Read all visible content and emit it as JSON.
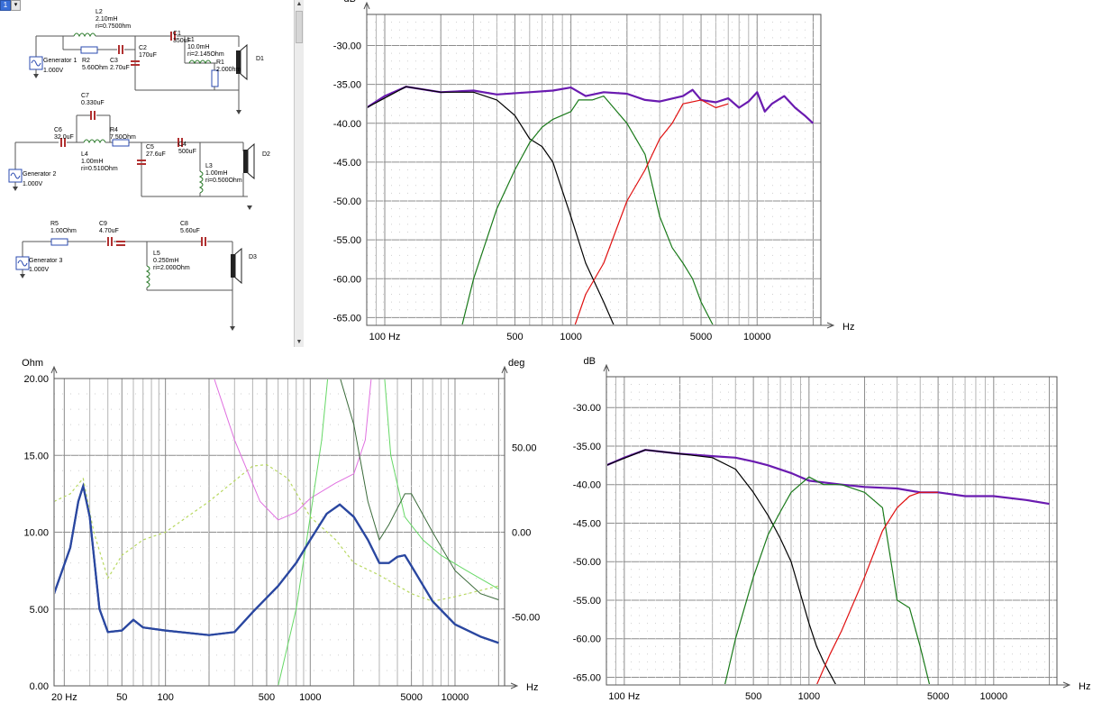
{
  "toolbar": {
    "combo_value": "1",
    "dropdown_glyph": "▾"
  },
  "schematic": {
    "generators": [
      {
        "name": "Generator 1",
        "voltage": "1.000V"
      },
      {
        "name": "Generator 2",
        "voltage": "1.000V"
      },
      {
        "name": "Generator 3",
        "voltage": "1.000V"
      }
    ],
    "drivers": [
      "D1",
      "D2",
      "D3"
    ],
    "components": [
      {
        "ref": "L2",
        "lines": [
          "L2",
          "2.10mH",
          "ri=0.7500hm"
        ]
      },
      {
        "ref": "R2",
        "lines": [
          "R2",
          "5.60Ohm"
        ]
      },
      {
        "ref": "C3",
        "lines": [
          "C3",
          "2.70uF"
        ]
      },
      {
        "ref": "C2",
        "lines": [
          "C2",
          "170uF"
        ]
      },
      {
        "ref": "C1",
        "lines": [
          "C1",
          "350uF"
        ]
      },
      {
        "ref": "L1",
        "lines": [
          "L1",
          "10.0mH",
          "ri=2.145Ohm"
        ]
      },
      {
        "ref": "R1",
        "lines": [
          "R1",
          "2.000hm"
        ]
      },
      {
        "ref": "C7",
        "lines": [
          "C7",
          "0.330uF"
        ]
      },
      {
        "ref": "C6",
        "lines": [
          "C6",
          "32.0uF"
        ]
      },
      {
        "ref": "R4",
        "lines": [
          "R4",
          "7.50Ohm"
        ]
      },
      {
        "ref": "L4",
        "lines": [
          "L4",
          "1.00mH",
          "ri=0.510Ohm"
        ]
      },
      {
        "ref": "C5",
        "lines": [
          "C5",
          "27.6uF"
        ]
      },
      {
        "ref": "C4",
        "lines": [
          "C4",
          "500uF"
        ]
      },
      {
        "ref": "L3",
        "lines": [
          "L3",
          "1.00mH",
          "ri=0.500Ohm"
        ]
      },
      {
        "ref": "R5",
        "lines": [
          "R5",
          "1.00Ohm"
        ]
      },
      {
        "ref": "C9",
        "lines": [
          "C9",
          "4.70uF"
        ]
      },
      {
        "ref": "C8",
        "lines": [
          "C8",
          "5.60uF"
        ]
      },
      {
        "ref": "L5",
        "lines": [
          "L5",
          "0.250mH",
          "ri=2.000Ohm"
        ]
      }
    ]
  },
  "charts": {
    "top_right": {
      "type": "line",
      "ylabel": "dB",
      "xlabel": "Hz",
      "x_scale": "log",
      "xlim": [
        80,
        22000
      ],
      "ylim": [
        -66,
        -26
      ],
      "y_ticks": [
        "-30.00",
        "-35.00",
        "-40.00",
        "-45.00",
        "-50.00",
        "-55.00",
        "-60.00",
        "-65.00"
      ],
      "y_tick_values": [
        -30,
        -35,
        -40,
        -45,
        -50,
        -55,
        -60,
        -65
      ],
      "x_ticks": [
        {
          "value": 100,
          "label": "100 Hz"
        },
        {
          "value": 500,
          "label": "500"
        },
        {
          "value": 1000,
          "label": "1000"
        },
        {
          "value": 5000,
          "label": "5000"
        },
        {
          "value": 10000,
          "label": "10000"
        }
      ],
      "colors": {
        "sum": "#6a1bb0",
        "woofer": "#000000",
        "mid": "#1a7a1a",
        "tweeter": "#e01010"
      }
    },
    "bottom_left": {
      "type": "line",
      "ylabel": "Ohm",
      "ylabel_right": "deg",
      "xlabel": "Hz",
      "x_scale": "log",
      "xlim": [
        17,
        22000
      ],
      "ylim": [
        0,
        20
      ],
      "y_ticks": [
        "20.00",
        "15.00",
        "10.00",
        "5.00",
        "0.00"
      ],
      "y_tick_values": [
        20,
        15,
        10,
        5,
        0
      ],
      "y_ticks_right": [
        "50.00",
        "0.00",
        "-50.00"
      ],
      "y_tick_values_right": [
        50,
        0,
        -50
      ],
      "x_ticks": [
        {
          "value": 20,
          "label": "20 Hz"
        },
        {
          "value": 50,
          "label": "50"
        },
        {
          "value": 100,
          "label": "100"
        },
        {
          "value": 500,
          "label": "500"
        },
        {
          "value": 1000,
          "label": "1000"
        },
        {
          "value": 5000,
          "label": "5000"
        },
        {
          "value": 10000,
          "label": "10000"
        }
      ],
      "colors": {
        "impedance": "#2a47a0",
        "phase": "#b8d860",
        "green1": "#66d866",
        "green2": "#3a6a3a",
        "magenta": "#e070e0"
      }
    },
    "bottom_right": {
      "type": "line",
      "ylabel": "dB",
      "xlabel": "Hz",
      "x_scale": "log",
      "xlim": [
        80,
        22000
      ],
      "ylim": [
        -66,
        -26
      ],
      "y_ticks": [
        "-30.00",
        "-35.00",
        "-40.00",
        "-45.00",
        "-50.00",
        "-55.00",
        "-60.00",
        "-65.00"
      ],
      "y_tick_values": [
        -30,
        -35,
        -40,
        -45,
        -50,
        -55,
        -60,
        -65
      ],
      "x_ticks": [
        {
          "value": 100,
          "label": "100 Hz"
        },
        {
          "value": 500,
          "label": "500"
        },
        {
          "value": 1000,
          "label": "1000"
        },
        {
          "value": 5000,
          "label": "5000"
        },
        {
          "value": 10000,
          "label": "10000"
        }
      ],
      "colors": {
        "sum": "#6a1bb0",
        "woofer": "#000000",
        "mid": "#1a7a1a",
        "tweeter": "#e01010"
      }
    }
  },
  "chart_data": [
    {
      "type": "line",
      "xlabel": "Hz",
      "ylabel": "dB",
      "ylim": [
        -66,
        -26
      ],
      "series": [
        {
          "values": [
            [
              80,
              -38.0
            ],
            [
              100,
              -36.5
            ],
            [
              130,
              -35.3
            ],
            [
              200,
              -36.0
            ],
            [
              300,
              -35.8
            ],
            [
              400,
              -36.3
            ],
            [
              600,
              -36.0
            ],
            [
              800,
              -35.8
            ],
            [
              1000,
              -35.4
            ],
            [
              1200,
              -36.5
            ],
            [
              1500,
              -36.0
            ],
            [
              2000,
              -36.2
            ],
            [
              2500,
              -37.0
            ],
            [
              3000,
              -37.2
            ],
            [
              4000,
              -36.5
            ],
            [
              4500,
              -35.7
            ],
            [
              5000,
              -37.0
            ],
            [
              6000,
              -37.3
            ],
            [
              7000,
              -36.8
            ],
            [
              8000,
              -38.0
            ],
            [
              9000,
              -37.2
            ],
            [
              10000,
              -36.0
            ],
            [
              11000,
              -38.5
            ],
            [
              12000,
              -37.5
            ],
            [
              14000,
              -36.5
            ],
            [
              16000,
              -38.0
            ],
            [
              18000,
              -39.0
            ],
            [
              20000,
              -40.0
            ]
          ]
        },
        {
          "values": [
            [
              80,
              -38.0
            ],
            [
              130,
              -35.3
            ],
            [
              200,
              -36.0
            ],
            [
              300,
              -36.0
            ],
            [
              400,
              -37.0
            ],
            [
              500,
              -39.0
            ],
            [
              600,
              -42.0
            ],
            [
              700,
              -43.0
            ],
            [
              800,
              -45.0
            ],
            [
              1000,
              -52.0
            ],
            [
              1200,
              -58.0
            ],
            [
              1500,
              -63.0
            ],
            [
              1700,
              -66.0
            ]
          ]
        },
        {
          "values": [
            [
              260,
              -66.0
            ],
            [
              300,
              -60.0
            ],
            [
              400,
              -51.0
            ],
            [
              500,
              -46.0
            ],
            [
              600,
              -42.5
            ],
            [
              700,
              -40.5
            ],
            [
              800,
              -39.5
            ],
            [
              1000,
              -38.5
            ],
            [
              1100,
              -37.0
            ],
            [
              1300,
              -37.0
            ],
            [
              1500,
              -36.5
            ],
            [
              2000,
              -40.0
            ],
            [
              2500,
              -44.0
            ],
            [
              3000,
              -52.0
            ],
            [
              3500,
              -56.0
            ],
            [
              4000,
              -58.0
            ],
            [
              4500,
              -60.0
            ],
            [
              5000,
              -63.0
            ],
            [
              5800,
              -66.0
            ]
          ]
        },
        {
          "values": [
            [
              1050,
              -66.0
            ],
            [
              1200,
              -62.0
            ],
            [
              1500,
              -58.0
            ],
            [
              2000,
              -50.0
            ],
            [
              2500,
              -46.0
            ],
            [
              3000,
              -42.0
            ],
            [
              3500,
              -40.0
            ],
            [
              4000,
              -37.5
            ],
            [
              5000,
              -37.0
            ],
            [
              6000,
              -38.0
            ],
            [
              7000,
              -37.5
            ]
          ]
        }
      ]
    },
    {
      "type": "line",
      "xlabel": "Hz",
      "ylabel": "Ohm",
      "ylim": [
        0,
        20
      ],
      "series": [
        {
          "values": [
            [
              17,
              6.0
            ],
            [
              22,
              9.0
            ],
            [
              25,
              12.0
            ],
            [
              27,
              13.0
            ],
            [
              30,
              11.0
            ],
            [
              35,
              5.0
            ],
            [
              40,
              3.5
            ],
            [
              50,
              3.6
            ],
            [
              60,
              4.3
            ],
            [
              70,
              3.8
            ],
            [
              100,
              3.6
            ],
            [
              200,
              3.3
            ],
            [
              300,
              3.5
            ],
            [
              400,
              4.8
            ],
            [
              600,
              6.5
            ],
            [
              800,
              8.0
            ],
            [
              1000,
              9.5
            ],
            [
              1300,
              11.2
            ],
            [
              1600,
              11.8
            ],
            [
              2000,
              11.0
            ],
            [
              2500,
              9.5
            ],
            [
              3000,
              8.0
            ],
            [
              3500,
              8.0
            ],
            [
              4000,
              8.4
            ],
            [
              4500,
              8.5
            ],
            [
              5000,
              7.8
            ],
            [
              7000,
              5.5
            ],
            [
              10000,
              4.0
            ],
            [
              15000,
              3.2
            ],
            [
              20000,
              2.8
            ]
          ]
        },
        {
          "values": [
            [
              17,
              12.0
            ],
            [
              22,
              12.5
            ],
            [
              27,
              13.5
            ],
            [
              32,
              10.0
            ],
            [
              40,
              7.0
            ],
            [
              50,
              8.5
            ],
            [
              70,
              9.5
            ],
            [
              100,
              10.0
            ],
            [
              200,
              12.0
            ],
            [
              400,
              14.3
            ],
            [
              500,
              14.4
            ],
            [
              700,
              13.5
            ],
            [
              1000,
              11.0
            ],
            [
              1500,
              9.5
            ],
            [
              2000,
              8.0
            ],
            [
              3000,
              7.2
            ],
            [
              5000,
              6.0
            ],
            [
              7000,
              5.5
            ],
            [
              10000,
              5.8
            ],
            [
              20000,
              6.5
            ]
          ]
        }
      ]
    },
    {
      "type": "line",
      "xlabel": "Hz",
      "ylabel": "dB",
      "ylim": [
        -66,
        -26
      ],
      "series": [
        {
          "values": [
            [
              80,
              -37.5
            ],
            [
              100,
              -36.5
            ],
            [
              130,
              -35.5
            ],
            [
              200,
              -36.0
            ],
            [
              300,
              -36.3
            ],
            [
              400,
              -36.5
            ],
            [
              500,
              -37.0
            ],
            [
              600,
              -37.5
            ],
            [
              800,
              -38.5
            ],
            [
              1000,
              -39.5
            ],
            [
              1500,
              -40.0
            ],
            [
              2000,
              -40.3
            ],
            [
              3000,
              -40.5
            ],
            [
              4000,
              -41.0
            ],
            [
              5000,
              -41.0
            ],
            [
              7000,
              -41.5
            ],
            [
              10000,
              -41.5
            ],
            [
              15000,
              -42.0
            ],
            [
              20000,
              -42.5
            ]
          ]
        },
        {
          "values": [
            [
              80,
              -37.5
            ],
            [
              130,
              -35.5
            ],
            [
              200,
              -36.0
            ],
            [
              300,
              -36.5
            ],
            [
              400,
              -38.0
            ],
            [
              500,
              -41.0
            ],
            [
              600,
              -44.0
            ],
            [
              700,
              -47.0
            ],
            [
              800,
              -50.0
            ],
            [
              1000,
              -58.0
            ],
            [
              1100,
              -61.0
            ],
            [
              1200,
              -63.0
            ],
            [
              1400,
              -66.0
            ]
          ]
        },
        {
          "values": [
            [
              350,
              -66.0
            ],
            [
              400,
              -60.0
            ],
            [
              500,
              -52.0
            ],
            [
              600,
              -46.5
            ],
            [
              700,
              -43.5
            ],
            [
              800,
              -41.0
            ],
            [
              1000,
              -39.0
            ],
            [
              1200,
              -40.0
            ],
            [
              1500,
              -40.0
            ],
            [
              2000,
              -41.0
            ],
            [
              2500,
              -43.0
            ],
            [
              3000,
              -55.0
            ],
            [
              3500,
              -56.0
            ],
            [
              4000,
              -61.0
            ],
            [
              4500,
              -66.0
            ]
          ]
        },
        {
          "values": [
            [
              1100,
              -66.0
            ],
            [
              1300,
              -62.0
            ],
            [
              1500,
              -59.0
            ],
            [
              2000,
              -52.0
            ],
            [
              2500,
              -46.0
            ],
            [
              3000,
              -43.0
            ],
            [
              3500,
              -41.5
            ],
            [
              4000,
              -41.0
            ],
            [
              5000,
              -41.0
            ]
          ]
        }
      ]
    }
  ]
}
